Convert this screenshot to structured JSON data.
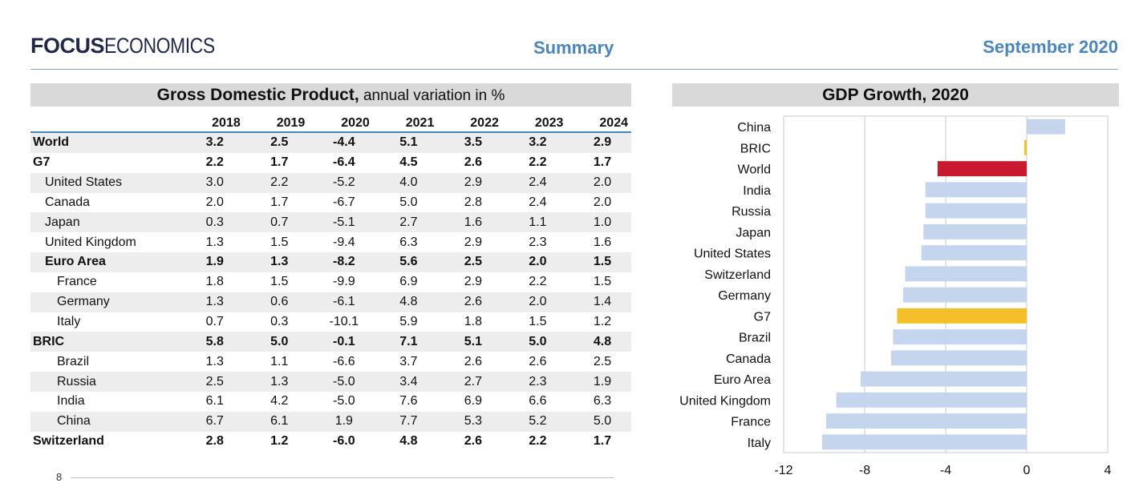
{
  "header": {
    "logo_bold": "FOCUS",
    "logo_light": "ECONOMICS",
    "section": "Summary",
    "date": "September 2020"
  },
  "table": {
    "title_bold": "Gross Domestic Product,",
    "title_rest": " annual variation in %",
    "columns": [
      "2018",
      "2019",
      "2020",
      "2021",
      "2022",
      "2023",
      "2024"
    ],
    "rows": [
      {
        "label": "World",
        "values": [
          "3.2",
          "2.5",
          "-4.4",
          "5.1",
          "3.5",
          "3.2",
          "2.9"
        ],
        "bold": true,
        "indent": 0,
        "shade": true
      },
      {
        "label": "G7",
        "values": [
          "2.2",
          "1.7",
          "-6.4",
          "4.5",
          "2.6",
          "2.2",
          "1.7"
        ],
        "bold": true,
        "indent": 0,
        "shade": false
      },
      {
        "label": "United States",
        "values": [
          "3.0",
          "2.2",
          "-5.2",
          "4.0",
          "2.9",
          "2.4",
          "2.0"
        ],
        "bold": false,
        "indent": 1,
        "shade": true
      },
      {
        "label": "Canada",
        "values": [
          "2.0",
          "1.7",
          "-6.7",
          "5.0",
          "2.8",
          "2.4",
          "2.0"
        ],
        "bold": false,
        "indent": 1,
        "shade": false
      },
      {
        "label": "Japan",
        "values": [
          "0.3",
          "0.7",
          "-5.1",
          "2.7",
          "1.6",
          "1.1",
          "1.0"
        ],
        "bold": false,
        "indent": 1,
        "shade": true
      },
      {
        "label": "United Kingdom",
        "values": [
          "1.3",
          "1.5",
          "-9.4",
          "6.3",
          "2.9",
          "2.3",
          "1.6"
        ],
        "bold": false,
        "indent": 1,
        "shade": false
      },
      {
        "label": "Euro Area",
        "values": [
          "1.9",
          "1.3",
          "-8.2",
          "5.6",
          "2.5",
          "2.0",
          "1.5"
        ],
        "bold": true,
        "indent": 1,
        "shade": true
      },
      {
        "label": "France",
        "values": [
          "1.8",
          "1.5",
          "-9.9",
          "6.9",
          "2.9",
          "2.2",
          "1.5"
        ],
        "bold": false,
        "indent": 2,
        "shade": false
      },
      {
        "label": "Germany",
        "values": [
          "1.3",
          "0.6",
          "-6.1",
          "4.8",
          "2.6",
          "2.0",
          "1.4"
        ],
        "bold": false,
        "indent": 2,
        "shade": true
      },
      {
        "label": "Italy",
        "values": [
          "0.7",
          "0.3",
          "-10.1",
          "5.9",
          "1.8",
          "1.5",
          "1.2"
        ],
        "bold": false,
        "indent": 2,
        "shade": false
      },
      {
        "label": "BRIC",
        "values": [
          "5.8",
          "5.0",
          "-0.1",
          "7.1",
          "5.1",
          "5.0",
          "4.8"
        ],
        "bold": true,
        "indent": 0,
        "shade": true
      },
      {
        "label": "Brazil",
        "values": [
          "1.3",
          "1.1",
          "-6.6",
          "3.7",
          "2.6",
          "2.6",
          "2.5"
        ],
        "bold": false,
        "indent": 2,
        "shade": false
      },
      {
        "label": "Russia",
        "values": [
          "2.5",
          "1.3",
          "-5.0",
          "3.4",
          "2.7",
          "2.3",
          "1.9"
        ],
        "bold": false,
        "indent": 2,
        "shade": true
      },
      {
        "label": "India",
        "values": [
          "6.1",
          "4.2",
          "-5.0",
          "7.6",
          "6.9",
          "6.6",
          "6.3"
        ],
        "bold": false,
        "indent": 2,
        "shade": false
      },
      {
        "label": "China",
        "values": [
          "6.7",
          "6.1",
          "1.9",
          "7.7",
          "5.3",
          "5.2",
          "5.0"
        ],
        "bold": false,
        "indent": 2,
        "shade": true
      },
      {
        "label": "Switzerland",
        "values": [
          "2.8",
          "1.2",
          "-6.0",
          "4.8",
          "2.6",
          "2.2",
          "1.7"
        ],
        "bold": true,
        "indent": 0,
        "shade": false
      }
    ]
  },
  "partial_chart": {
    "tick": "8"
  },
  "chart_data": {
    "type": "bar",
    "orientation": "horizontal",
    "title": "GDP Growth, 2020",
    "categories": [
      "China",
      "BRIC",
      "World",
      "India",
      "Russia",
      "Japan",
      "United States",
      "Switzerland",
      "Germany",
      "G7",
      "Brazil",
      "Canada",
      "Euro Area",
      "United Kingdom",
      "France",
      "Italy"
    ],
    "values": [
      1.9,
      -0.1,
      -4.4,
      -5.0,
      -5.0,
      -5.1,
      -5.2,
      -6.0,
      -6.1,
      -6.4,
      -6.6,
      -6.7,
      -8.2,
      -9.4,
      -9.9,
      -10.1
    ],
    "bar_colors": [
      "#c5d5ee",
      "#f4c02a",
      "#c8192e",
      "#c5d5ee",
      "#c5d5ee",
      "#c5d5ee",
      "#c5d5ee",
      "#c5d5ee",
      "#c5d5ee",
      "#f4c02a",
      "#c5d5ee",
      "#c5d5ee",
      "#c5d5ee",
      "#c5d5ee",
      "#c5d5ee",
      "#c5d5ee"
    ],
    "xlim": [
      -12,
      4
    ],
    "xticks": [
      "-12",
      "-8",
      "-4",
      "0",
      "4"
    ],
    "xtick_values": [
      -12,
      -8,
      -4,
      0,
      4
    ],
    "grid": "vertical",
    "legend": "none"
  }
}
